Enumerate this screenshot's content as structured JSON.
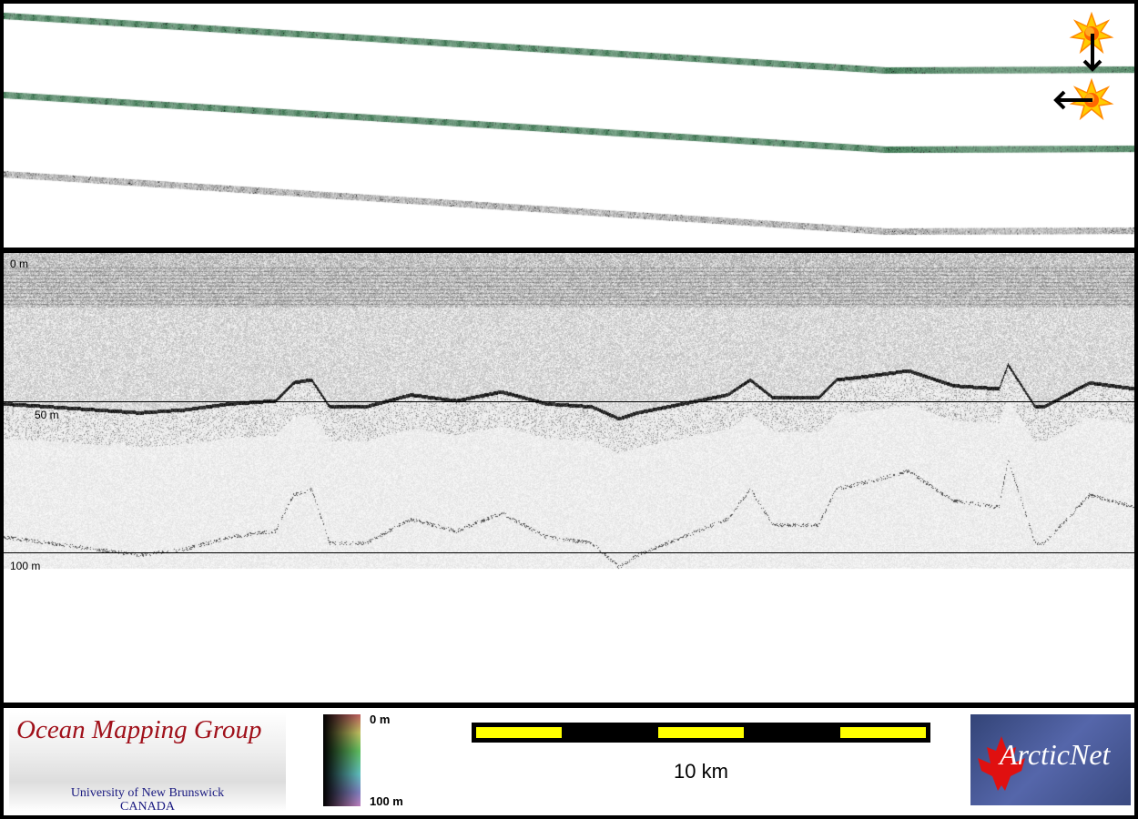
{
  "depth_axis": {
    "labels": [
      "0 m",
      "50 m",
      "100 m"
    ]
  },
  "seabed_profile": {
    "along_track_fraction": [
      0,
      0.04,
      0.08,
      0.12,
      0.16,
      0.2,
      0.24,
      0.256,
      0.272,
      0.288,
      0.32,
      0.36,
      0.4,
      0.44,
      0.48,
      0.52,
      0.544,
      0.56,
      0.6,
      0.64,
      0.66,
      0.68,
      0.72,
      0.736,
      0.76,
      0.8,
      0.84,
      0.88,
      0.888,
      0.912,
      0.92,
      0.96,
      1.0
    ],
    "depth_m": [
      48,
      49,
      50,
      51,
      50,
      48,
      47,
      41,
      40,
      49,
      49,
      45,
      47,
      44,
      48,
      49,
      53,
      51,
      48,
      45,
      40,
      46,
      46,
      40,
      39,
      37,
      42,
      43,
      35,
      49,
      49,
      41,
      43
    ]
  },
  "colorbar": {
    "top_label": "0 m",
    "bottom_label": "100 m"
  },
  "scale_bar": {
    "label": "10 km"
  },
  "logos": {
    "omg_title": "Ocean Mapping Group",
    "omg_sub1": "University of New Brunswick",
    "omg_sub2": "CANADA",
    "arcticnet": "ArcticNet"
  },
  "icons": [
    "sun-illumination-icon",
    "arrow-down-icon",
    "arrow-left-icon"
  ],
  "colors": {
    "swath_green": "#3f7a55",
    "swath_gray": "#888888",
    "scale_yellow": "#ffff00",
    "omg_red": "#a0101a"
  }
}
